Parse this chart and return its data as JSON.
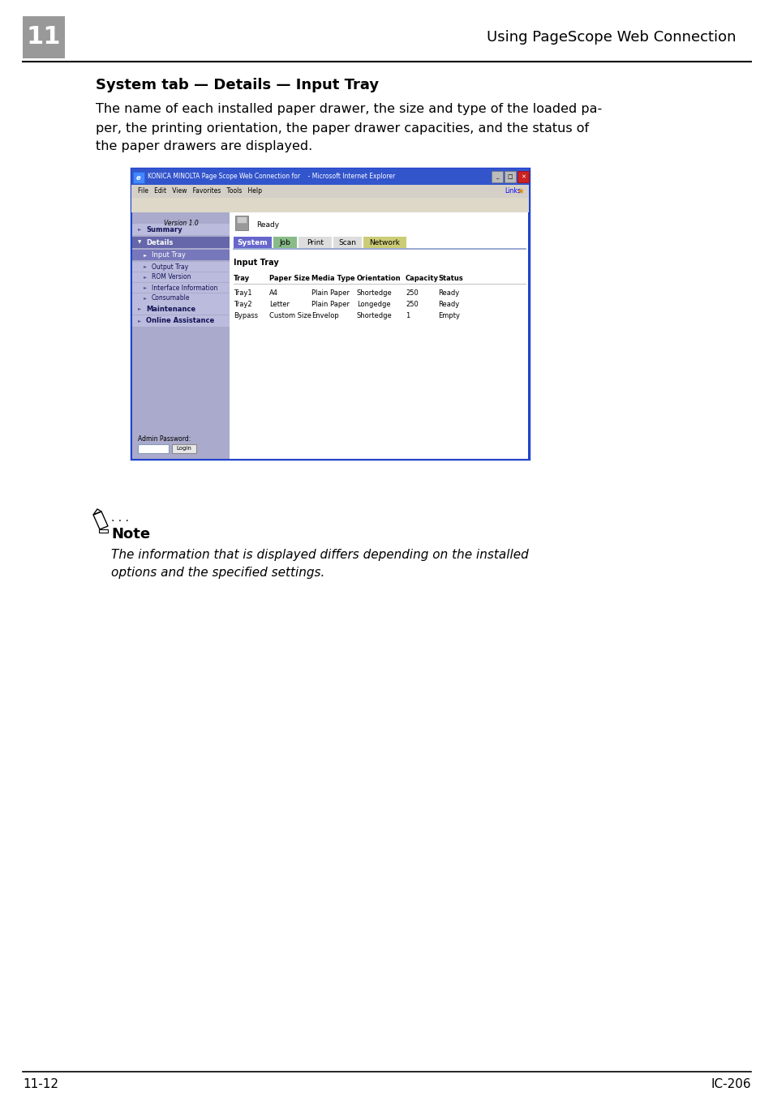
{
  "page_bg": "#ffffff",
  "header_text": "Using PageScope Web Connection",
  "header_chapter": "11",
  "footer_left": "11-12",
  "footer_right": "IC-206",
  "section_title": "System tab — Details — Input Tray",
  "body_line1": "The name of each installed paper drawer, the size and type of the loaded pa-",
  "body_line2": "per, the printing orientation, the paper drawer capacities, and the status of",
  "body_line3": "the paper drawers are displayed.",
  "note_label": "Note",
  "note_line1": "The information that is displayed differs depending on the installed",
  "note_line2": "options and the specified settings.",
  "browser_title": "KONICA MINOLTA Page Scope Web Connection for    - Microsoft Internet Explorer",
  "browser_menu": "File   Edit   View   Favorites   Tools   Help",
  "browser_links": "Links",
  "browser_status": "Ready",
  "browser_version": "Version 1.0",
  "tab_labels": [
    "System",
    "Job",
    "Print",
    "Scan",
    "Network"
  ],
  "tab_bg_colors": [
    "#6666cc",
    "#88bb88",
    "#dddddd",
    "#dddddd",
    "#cccc77"
  ],
  "tab_text_colors": [
    "#ffffff",
    "#000000",
    "#000000",
    "#000000",
    "#000000"
  ],
  "nav_bg": "#aaaacc",
  "nav_selected_bg": "#6666aa",
  "nav_sub_selected_bg": "#8888bb",
  "nav_lighter_bg": "#bbbbdd",
  "content_section": "Input Tray",
  "col_headers": [
    "Tray",
    "Paper Size",
    "Media Type",
    "Orientation",
    "Capacity",
    "Status"
  ],
  "row1": [
    "Tray1",
    "A4",
    "Plain Paper",
    "Shortedge",
    "250",
    "Ready"
  ],
  "row2": [
    "Tray2",
    "Letter",
    "Plain Paper",
    "Longedge",
    "250",
    "Ready"
  ],
  "row3": [
    "Bypass",
    "Custom Size",
    "Envelop",
    "Shortedge",
    "1",
    "Empty"
  ],
  "admin_label": "Admin Password:",
  "login_btn": "Login",
  "browser_border_color": "#2244cc",
  "title_bar_color": "#3355cc",
  "menubar_color": "#d4d0c8",
  "toolbar_color": "#ddd8c8",
  "tab_underline_color": "#8899cc"
}
